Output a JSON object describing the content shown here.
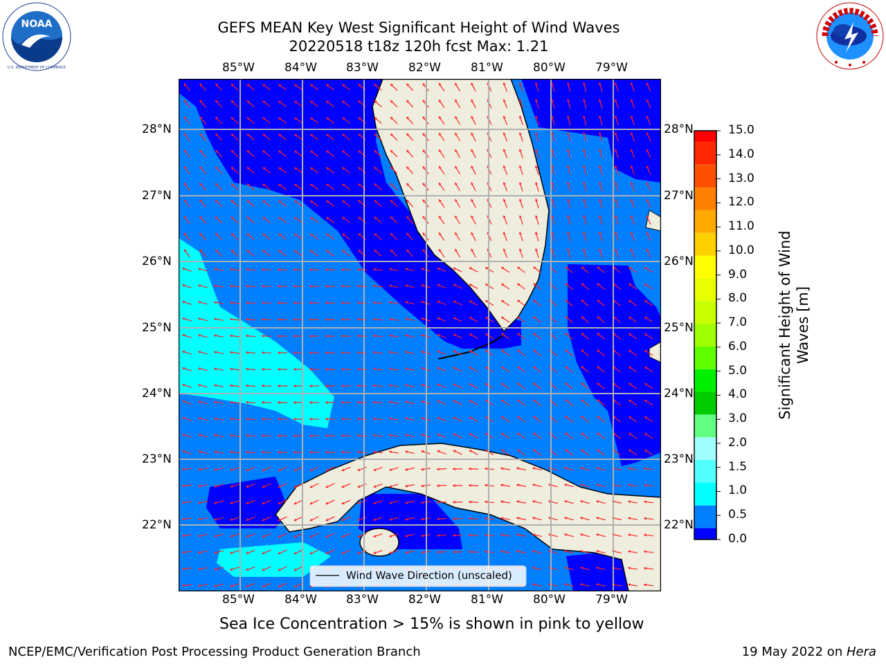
{
  "title": {
    "line1": "GEFS MEAN Key West Significant Height of Wind Waves",
    "line2": "20220518 t18z 120h fcst   Max: 1.21"
  },
  "logos": {
    "noaa": "NOAA",
    "noaa_ring": "NATIONAL OCEANIC AND ATMOSPHERIC ADMINISTRATION · U.S. DEPARTMENT OF COMMERCE",
    "nws_ring": "NATIONAL WEATHER SERVICE"
  },
  "map": {
    "lon_labels": [
      "85°W",
      "84°W",
      "83°W",
      "82°W",
      "81°W",
      "80°W",
      "79°W"
    ],
    "lat_labels": [
      "28°N",
      "27°N",
      "26°N",
      "25°N",
      "24°N",
      "23°N",
      "22°N"
    ],
    "legend": "Wind Wave Direction (unscaled)",
    "colors": {
      "land": "#efedde",
      "coast": "#000000",
      "grid": "#b0b0b0",
      "arrow": "#ff2020",
      "wave_0_0_5": "#0000ff",
      "wave_0_5_1_0": "#0080ff",
      "wave_1_0_1_5": "#00ffff"
    }
  },
  "colorbar": {
    "label": "Significant Height of Wind Waves [m]",
    "label_line1": "Significant Height of Wind",
    "label_line2": "Waves [m]",
    "ticks": [
      "15.0",
      "14.0",
      "13.0",
      "12.0",
      "11.0",
      "10.0",
      "9.0",
      "8.0",
      "7.0",
      "6.0",
      "5.0",
      "4.0",
      "3.0",
      "2.0",
      "1.5",
      "1.0",
      "0.5",
      "0.0"
    ],
    "colors": [
      "#ff0000",
      "#ff2800",
      "#ff5000",
      "#ff8000",
      "#ffa800",
      "#ffd000",
      "#ffff00",
      "#e8ff00",
      "#c8ff00",
      "#a0ff00",
      "#60ff00",
      "#00ee00",
      "#00cc00",
      "#60ff80",
      "#a0ffff",
      "#50ffff",
      "#00ffff",
      "#0080ff",
      "#0000ff"
    ]
  },
  "caption": "Sea Ice Concentration > 15% is shown in pink to yellow",
  "footer": {
    "left": "NCEP/EMC/Verification Post Processing Product Generation Branch",
    "right_prefix": "19 May 2022 on ",
    "right_italic": "Hera"
  }
}
